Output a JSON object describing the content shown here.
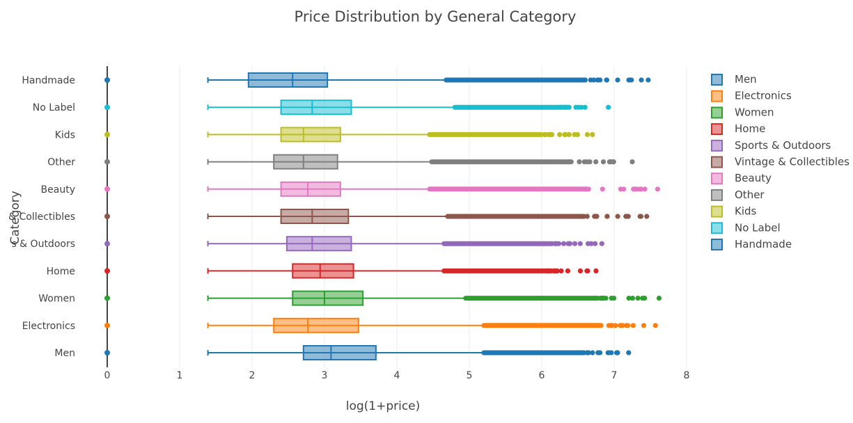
{
  "chart_data": {
    "type": "box",
    "title": "Price Distribution by General Category",
    "xlabel": "log(1+price)",
    "ylabel": "Category",
    "xlim": [
      0,
      8
    ],
    "xticks": [
      "0",
      "1",
      "2",
      "3",
      "4",
      "5",
      "6",
      "7",
      "8"
    ],
    "ytick_labels": [
      "Men",
      "Electronics",
      "Women",
      "Home",
      "s & Outdoors",
      "& Collectibles",
      "Beauty",
      "Other",
      "Kids",
      "No Label",
      "Handmade"
    ],
    "legend_position": "right",
    "series": [
      {
        "name": "Men",
        "color": "#1f77b4",
        "min": 1.39,
        "q1": 2.71,
        "median": 3.09,
        "q3": 3.71,
        "upper_fence": 5.2,
        "outliers": [
          5.2,
          7.2
        ]
      },
      {
        "name": "Electronics",
        "color": "#ff7f0e",
        "min": 1.39,
        "q1": 2.3,
        "median": 2.77,
        "q3": 3.47,
        "upper_fence": 5.2,
        "outliers": [
          5.2,
          7.57
        ]
      },
      {
        "name": "Women",
        "color": "#2ca02c",
        "min": 1.39,
        "q1": 2.56,
        "median": 3.0,
        "q3": 3.53,
        "upper_fence": 4.95,
        "outliers": [
          4.95,
          7.62
        ]
      },
      {
        "name": "Home",
        "color": "#d62728",
        "min": 1.39,
        "q1": 2.56,
        "median": 2.94,
        "q3": 3.4,
        "upper_fence": 4.65,
        "outliers": [
          4.65,
          6.75
        ]
      },
      {
        "name": "Sports & Outdoors",
        "color": "#9467bd",
        "min": 1.39,
        "q1": 2.48,
        "median": 2.83,
        "q3": 3.37,
        "upper_fence": 4.65,
        "outliers": [
          4.65,
          6.83
        ]
      },
      {
        "name": "Vintage & Collectibles",
        "color": "#8c564b",
        "min": 1.39,
        "q1": 2.4,
        "median": 2.83,
        "q3": 3.33,
        "upper_fence": 4.7,
        "outliers": [
          4.7,
          7.45
        ]
      },
      {
        "name": "Beauty",
        "color": "#e377c2",
        "min": 1.39,
        "q1": 2.4,
        "median": 2.77,
        "q3": 3.22,
        "upper_fence": 4.45,
        "outliers": [
          4.45,
          7.6
        ]
      },
      {
        "name": "Other",
        "color": "#7f7f7f",
        "min": 1.39,
        "q1": 2.3,
        "median": 2.71,
        "q3": 3.18,
        "upper_fence": 4.48,
        "outliers": [
          4.48,
          7.25
        ]
      },
      {
        "name": "Kids",
        "color": "#bcbd22",
        "min": 1.39,
        "q1": 2.4,
        "median": 2.71,
        "q3": 3.22,
        "upper_fence": 4.45,
        "outliers": [
          4.45,
          6.7
        ]
      },
      {
        "name": "No Label",
        "color": "#17becf",
        "min": 1.39,
        "q1": 2.4,
        "median": 2.83,
        "q3": 3.37,
        "upper_fence": 4.8,
        "outliers": [
          4.8,
          6.92
        ]
      },
      {
        "name": "Handmade",
        "color": "#1f77b4",
        "min": 1.39,
        "q1": 1.95,
        "median": 2.56,
        "q3": 3.04,
        "upper_fence": 4.68,
        "outliers": [
          4.68,
          7.47
        ]
      }
    ]
  }
}
